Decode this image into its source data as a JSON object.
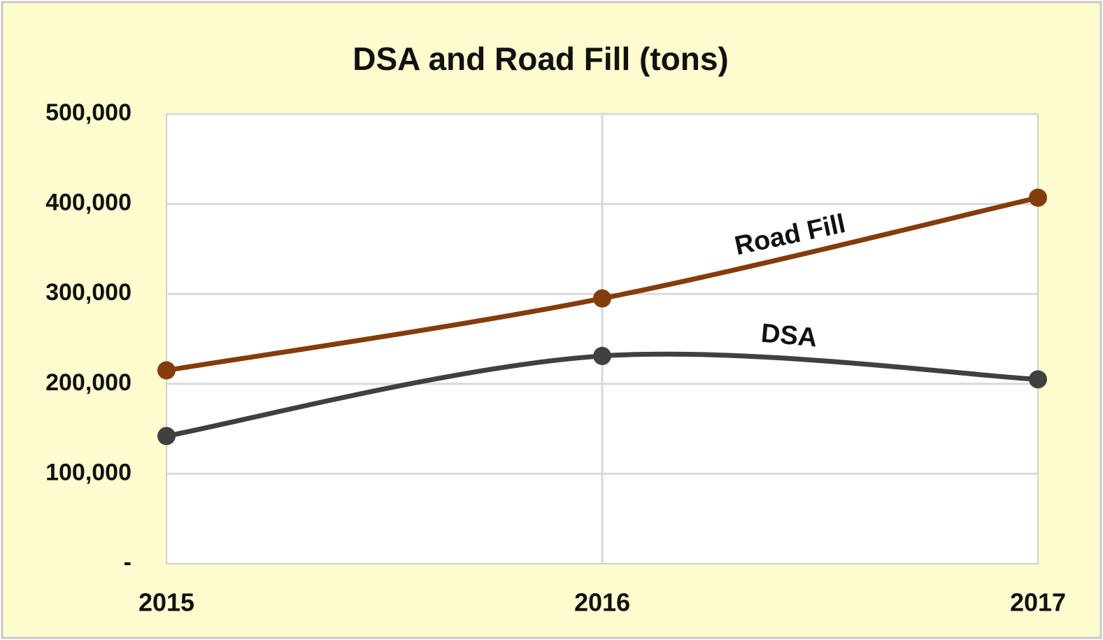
{
  "chart_data": {
    "type": "line",
    "title": "DSA and Road Fill (tons)",
    "categories": [
      "2015",
      "2016",
      "2017"
    ],
    "series": [
      {
        "name": "Road Fill",
        "color": "#843c0c",
        "values": [
          215000,
          295000,
          407000
        ]
      },
      {
        "name": "DSA",
        "color": "#404040",
        "values": [
          142000,
          231000,
          205000
        ]
      }
    ],
    "ylim": [
      0,
      500000
    ],
    "yticks": [
      {
        "value": 0,
        "label": "-"
      },
      {
        "value": 100000,
        "label": "100,000"
      },
      {
        "value": 200000,
        "label": "200,000"
      },
      {
        "value": 300000,
        "label": "300,000"
      },
      {
        "value": 400000,
        "label": "400,000"
      },
      {
        "value": 500000,
        "label": "500,000"
      }
    ],
    "grid": true,
    "smooth": true
  }
}
